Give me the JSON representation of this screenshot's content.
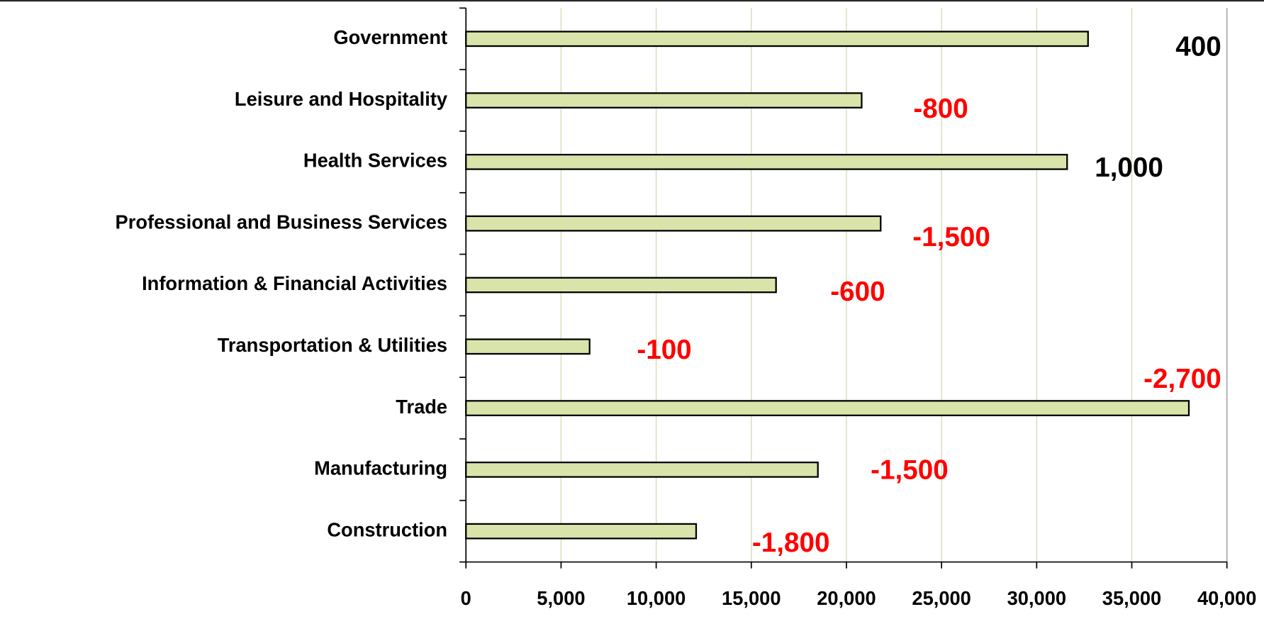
{
  "chart_data": {
    "type": "bar",
    "orientation": "horizontal",
    "categories": [
      "Government",
      "Leisure and Hospitality",
      "Health Services",
      "Professional and Business Services",
      "Information & Financial Activities",
      "Transportation & Utilities",
      "Trade",
      "Manufacturing",
      "Construction"
    ],
    "values": [
      32700,
      20800,
      31600,
      21800,
      16300,
      6500,
      38000,
      18500,
      12100
    ],
    "color": "#d9e4aa",
    "annotations": [
      {
        "text": "400",
        "color": "#000000"
      },
      {
        "text": "-800",
        "color": "#ff0000"
      },
      {
        "text": "1,000",
        "color": "#000000"
      },
      {
        "text": "-1,500",
        "color": "#ff0000"
      },
      {
        "text": "-600",
        "color": "#ff0000"
      },
      {
        "text": "-100",
        "color": "#ff0000"
      },
      {
        "text": "-2,700",
        "color": "#ff0000"
      },
      {
        "text": "-1,500",
        "color": "#ff0000"
      },
      {
        "text": "-1,800",
        "color": "#ff0000"
      }
    ],
    "xlim": [
      0,
      40000
    ],
    "xticks": [
      0,
      {
        "value": 5000,
        "label": "5,000"
      },
      {
        "value": 10000,
        "label": "10,000"
      },
      {
        "value": 15000,
        "label": "15,000"
      },
      {
        "value": 20000,
        "label": "20,000"
      },
      {
        "value": 25000,
        "label": "25,000"
      },
      {
        "value": 30000,
        "label": "30,000"
      },
      {
        "value": 35000,
        "label": "35,000"
      },
      {
        "value": 40000,
        "label": "40,000"
      }
    ],
    "grid": true
  }
}
